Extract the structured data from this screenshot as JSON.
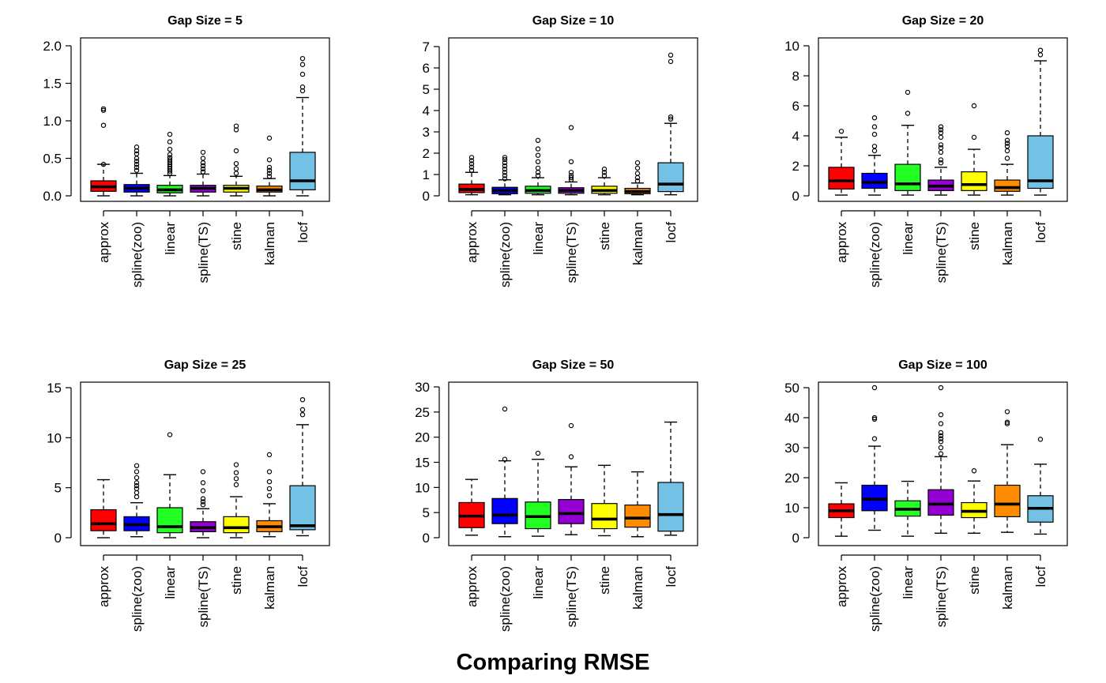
{
  "title": "Comparing RMSE",
  "methods": [
    "approx",
    "spline(zoo)",
    "linear",
    "spline(TS)",
    "stine",
    "kalman",
    "locf"
  ],
  "colors": {
    "approx": "#FF0000",
    "spline(zoo)": "#0000FF",
    "linear": "#22FF22",
    "spline(TS)": "#9400D3",
    "stine": "#FFFF00",
    "kalman": "#FF8C00",
    "locf": "#73C2E6"
  },
  "chart_data": [
    {
      "type": "boxplot",
      "title": "Gap Size = 5",
      "ylim": [
        0,
        2.0
      ],
      "yticks": [
        "0.0",
        "0.5",
        "1.0",
        "1.5",
        "2.0"
      ],
      "ytick_values": [
        0,
        0.5,
        1.0,
        1.5,
        2.0
      ],
      "categories": [
        "approx",
        "spline(zoo)",
        "linear",
        "spline(TS)",
        "stine",
        "kalman",
        "locf"
      ],
      "boxes": [
        {
          "min": 0.0,
          "q1": 0.06,
          "median": 0.12,
          "q3": 0.2,
          "max": 0.42,
          "outliers": [
            0.42,
            0.94,
            1.14,
            1.16
          ]
        },
        {
          "min": 0.0,
          "q1": 0.05,
          "median": 0.1,
          "q3": 0.15,
          "max": 0.3,
          "outliers": [
            0.34,
            0.38,
            0.42,
            0.46,
            0.5,
            0.56,
            0.6,
            0.65
          ]
        },
        {
          "min": 0.0,
          "q1": 0.04,
          "median": 0.08,
          "q3": 0.14,
          "max": 0.27,
          "outliers": [
            0.3,
            0.33,
            0.36,
            0.39,
            0.42,
            0.45,
            0.48,
            0.51,
            0.55,
            0.62,
            0.72,
            0.82
          ]
        },
        {
          "min": 0.0,
          "q1": 0.05,
          "median": 0.1,
          "q3": 0.14,
          "max": 0.29,
          "outliers": [
            0.32,
            0.36,
            0.4,
            0.44,
            0.5,
            0.58
          ]
        },
        {
          "min": 0.0,
          "q1": 0.05,
          "median": 0.1,
          "q3": 0.14,
          "max": 0.26,
          "outliers": [
            0.3,
            0.36,
            0.43,
            0.6,
            0.88,
            0.93
          ]
        },
        {
          "min": 0.0,
          "q1": 0.05,
          "median": 0.08,
          "q3": 0.13,
          "max": 0.23,
          "outliers": [
            0.26,
            0.3,
            0.34,
            0.38,
            0.48,
            0.77
          ]
        },
        {
          "min": 0.0,
          "q1": 0.08,
          "median": 0.2,
          "q3": 0.58,
          "max": 1.31,
          "outliers": [
            1.4,
            1.45,
            1.62,
            1.75,
            1.83
          ]
        }
      ]
    },
    {
      "type": "boxplot",
      "title": "Gap Size = 10",
      "ylim": [
        0,
        7
      ],
      "yticks": [
        "0",
        "1",
        "2",
        "3",
        "4",
        "5",
        "6",
        "7"
      ],
      "ytick_values": [
        0,
        1,
        2,
        3,
        4,
        5,
        6,
        7
      ],
      "categories": [
        "approx",
        "spline(zoo)",
        "linear",
        "spline(TS)",
        "stine",
        "kalman",
        "locf"
      ],
      "boxes": [
        {
          "min": 0.05,
          "q1": 0.15,
          "median": 0.3,
          "q3": 0.55,
          "max": 1.1,
          "outliers": [
            1.2,
            1.35,
            1.5,
            1.65,
            1.8
          ]
        },
        {
          "min": 0.05,
          "q1": 0.1,
          "median": 0.25,
          "q3": 0.4,
          "max": 0.75,
          "outliers": [
            0.8,
            0.95,
            1.1,
            1.25,
            1.4,
            1.55,
            1.7,
            1.8
          ]
        },
        {
          "min": 0.05,
          "q1": 0.12,
          "median": 0.25,
          "q3": 0.45,
          "max": 0.85,
          "outliers": [
            0.95,
            1.1,
            1.3,
            1.6,
            1.9,
            2.2,
            2.6
          ]
        },
        {
          "min": 0.05,
          "q1": 0.12,
          "median": 0.25,
          "q3": 0.38,
          "max": 0.65,
          "outliers": [
            0.75,
            0.85,
            0.95,
            1.1,
            1.6,
            3.2
          ]
        },
        {
          "min": 0.05,
          "q1": 0.12,
          "median": 0.25,
          "q3": 0.45,
          "max": 0.85,
          "outliers": [
            0.95,
            1.1,
            1.25
          ]
        },
        {
          "min": 0.05,
          "q1": 0.1,
          "median": 0.2,
          "q3": 0.35,
          "max": 0.6,
          "outliers": [
            0.7,
            0.85,
            1.05,
            1.3,
            1.55
          ]
        },
        {
          "min": 0.05,
          "q1": 0.2,
          "median": 0.55,
          "q3": 1.55,
          "max": 3.4,
          "outliers": [
            3.6,
            3.7,
            6.3,
            6.6
          ]
        }
      ]
    },
    {
      "type": "boxplot",
      "title": "Gap Size = 20",
      "ylim": [
        0,
        10
      ],
      "yticks": [
        "0",
        "2",
        "4",
        "6",
        "8",
        "10"
      ],
      "ytick_values": [
        0,
        2,
        4,
        6,
        8,
        10
      ],
      "categories": [
        "approx",
        "spline(zoo)",
        "linear",
        "spline(TS)",
        "stine",
        "kalman",
        "locf"
      ],
      "boxes": [
        {
          "min": 0.05,
          "q1": 0.45,
          "median": 1.0,
          "q3": 1.9,
          "max": 3.9,
          "outliers": [
            4.3
          ]
        },
        {
          "min": 0.05,
          "q1": 0.5,
          "median": 0.9,
          "q3": 1.5,
          "max": 2.7,
          "outliers": [
            3.0,
            3.3,
            4.1,
            4.6,
            5.2
          ]
        },
        {
          "min": 0.05,
          "q1": 0.35,
          "median": 0.8,
          "q3": 2.1,
          "max": 4.7,
          "outliers": [
            5.5,
            6.9
          ]
        },
        {
          "min": 0.05,
          "q1": 0.35,
          "median": 0.65,
          "q3": 1.05,
          "max": 1.9,
          "outliers": [
            2.2,
            2.4,
            2.9,
            3.2,
            3.4,
            3.9,
            4.2,
            4.4,
            4.6
          ]
        },
        {
          "min": 0.05,
          "q1": 0.35,
          "median": 0.75,
          "q3": 1.6,
          "max": 3.1,
          "outliers": [
            3.9,
            6.0
          ]
        },
        {
          "min": 0.05,
          "q1": 0.3,
          "median": 0.55,
          "q3": 1.05,
          "max": 2.1,
          "outliers": [
            2.5,
            3.0,
            3.3,
            3.5,
            3.7,
            4.2
          ]
        },
        {
          "min": 0.05,
          "q1": 0.5,
          "median": 1.0,
          "q3": 4.0,
          "max": 9.0,
          "outliers": [
            9.4,
            9.7
          ]
        }
      ]
    },
    {
      "type": "boxplot",
      "title": "Gap Size = 25",
      "ylim": [
        0,
        15
      ],
      "yticks": [
        "0",
        "5",
        "10",
        "15"
      ],
      "ytick_values": [
        0,
        5,
        10,
        15
      ],
      "categories": [
        "approx",
        "spline(zoo)",
        "linear",
        "spline(TS)",
        "stine",
        "kalman",
        "locf"
      ],
      "boxes": [
        {
          "min": 0.0,
          "q1": 0.7,
          "median": 1.4,
          "q3": 2.8,
          "max": 5.8,
          "outliers": []
        },
        {
          "min": 0.1,
          "q1": 0.7,
          "median": 1.3,
          "q3": 2.1,
          "max": 3.5,
          "outliers": [
            4.1,
            4.5,
            4.9,
            5.2,
            5.5,
            6.0,
            6.6,
            7.2
          ]
        },
        {
          "min": 0.0,
          "q1": 0.5,
          "median": 1.1,
          "q3": 3.0,
          "max": 6.3,
          "outliers": [
            10.3
          ]
        },
        {
          "min": 0.0,
          "q1": 0.6,
          "median": 1.0,
          "q3": 1.6,
          "max": 2.9,
          "outliers": [
            3.3,
            3.6,
            3.9,
            4.7,
            5.5,
            6.6
          ]
        },
        {
          "min": 0.0,
          "q1": 0.5,
          "median": 1.0,
          "q3": 2.1,
          "max": 4.1,
          "outliers": [
            5.3,
            5.9,
            6.5,
            7.3
          ]
        },
        {
          "min": 0.1,
          "q1": 0.6,
          "median": 1.1,
          "q3": 1.7,
          "max": 3.4,
          "outliers": [
            4.2,
            4.9,
            5.6,
            6.6,
            8.3
          ]
        },
        {
          "min": 0.2,
          "q1": 0.8,
          "median": 1.2,
          "q3": 5.2,
          "max": 11.3,
          "outliers": [
            12.3,
            12.8,
            13.8
          ]
        }
      ]
    },
    {
      "type": "boxplot",
      "title": "Gap Size = 50",
      "ylim": [
        0,
        30
      ],
      "yticks": [
        "0",
        "5",
        "10",
        "15",
        "20",
        "25",
        "30"
      ],
      "ytick_values": [
        0,
        5,
        10,
        15,
        20,
        25,
        30
      ],
      "categories": [
        "approx",
        "spline(zoo)",
        "linear",
        "spline(TS)",
        "stine",
        "kalman",
        "locf"
      ],
      "boxes": [
        {
          "min": 0.5,
          "q1": 2.0,
          "median": 4.3,
          "q3": 7.0,
          "max": 11.6,
          "outliers": []
        },
        {
          "min": 0.2,
          "q1": 2.8,
          "median": 4.5,
          "q3": 7.8,
          "max": 15.3,
          "outliers": [
            15.6,
            25.6
          ]
        },
        {
          "min": 0.3,
          "q1": 1.8,
          "median": 4.2,
          "q3": 7.1,
          "max": 15.6,
          "outliers": [
            16.8
          ]
        },
        {
          "min": 0.6,
          "q1": 2.8,
          "median": 4.8,
          "q3": 7.6,
          "max": 14.1,
          "outliers": [
            16.1,
            22.3
          ]
        },
        {
          "min": 0.4,
          "q1": 1.8,
          "median": 3.7,
          "q3": 6.8,
          "max": 14.4,
          "outliers": []
        },
        {
          "min": 0.2,
          "q1": 2.1,
          "median": 3.9,
          "q3": 6.5,
          "max": 13.1,
          "outliers": []
        },
        {
          "min": 0.5,
          "q1": 1.3,
          "median": 4.6,
          "q3": 11.0,
          "max": 23.0,
          "outliers": []
        }
      ]
    },
    {
      "type": "boxplot",
      "title": "Gap Size = 100",
      "ylim": [
        0,
        50
      ],
      "yticks": [
        "0",
        "10",
        "20",
        "30",
        "40",
        "50"
      ],
      "ytick_values": [
        0,
        10,
        20,
        30,
        40,
        50
      ],
      "categories": [
        "approx",
        "spline(zoo)",
        "linear",
        "spline(TS)",
        "stine",
        "kalman",
        "locf"
      ],
      "boxes": [
        {
          "min": 0.5,
          "q1": 6.7,
          "median": 9.0,
          "q3": 11.3,
          "max": 18.3,
          "outliers": []
        },
        {
          "min": 2.5,
          "q1": 9.0,
          "median": 12.8,
          "q3": 17.5,
          "max": 30.5,
          "outliers": [
            33.0,
            39.5,
            40.0,
            50.0
          ]
        },
        {
          "min": 0.5,
          "q1": 7.2,
          "median": 9.5,
          "q3": 12.3,
          "max": 18.8,
          "outliers": []
        },
        {
          "min": 1.5,
          "q1": 7.5,
          "median": 11.2,
          "q3": 16.0,
          "max": 27.0,
          "outliers": [
            28.0,
            30.0,
            32.0,
            33.0,
            34.0,
            35.0,
            38.0,
            41.0,
            50.0
          ]
        },
        {
          "min": 1.5,
          "q1": 6.7,
          "median": 8.8,
          "q3": 11.7,
          "max": 18.9,
          "outliers": [
            22.3
          ]
        },
        {
          "min": 1.8,
          "q1": 7.0,
          "median": 11.2,
          "q3": 17.5,
          "max": 31.0,
          "outliers": [
            38.0,
            38.5,
            42.0
          ]
        },
        {
          "min": 1.2,
          "q1": 5.2,
          "median": 9.8,
          "q3": 14.0,
          "max": 24.5,
          "outliers": [
            32.8
          ]
        }
      ]
    }
  ]
}
